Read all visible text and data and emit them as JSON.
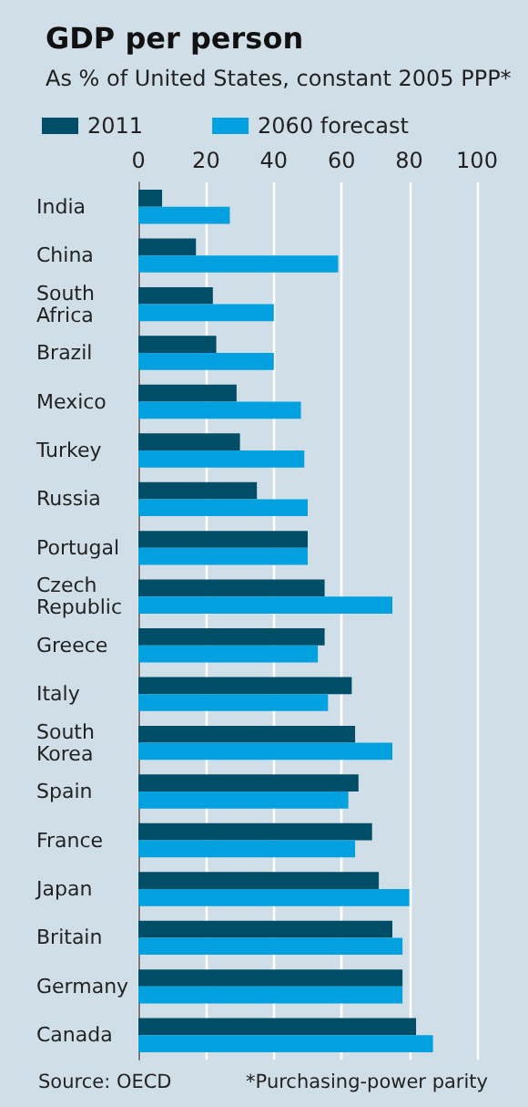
{
  "chart_data": {
    "type": "bar",
    "orientation": "horizontal",
    "title": "GDP per person",
    "subtitle": "As % of United States, constant 2005 PPP*",
    "categories": [
      "India",
      "China",
      "South Africa",
      "Brazil",
      "Mexico",
      "Turkey",
      "Russia",
      "Portugal",
      "Czech Republic",
      "Greece",
      "Italy",
      "South Korea",
      "Spain",
      "France",
      "Japan",
      "Britain",
      "Germany",
      "Canada"
    ],
    "series": [
      {
        "name": "2011",
        "color": "#004d67",
        "values": [
          7,
          17,
          22,
          23,
          29,
          30,
          35,
          50,
          55,
          55,
          63,
          64,
          65,
          69,
          71,
          75,
          78,
          82
        ]
      },
      {
        "name": "2060 forecast",
        "color": "#00a1de",
        "values": [
          27,
          59,
          40,
          40,
          48,
          49,
          50,
          50,
          75,
          53,
          56,
          75,
          62,
          64,
          80,
          78,
          78,
          87
        ]
      }
    ],
    "xlim": [
      0,
      100
    ],
    "xticks": [
      0,
      20,
      40,
      60,
      80,
      100
    ],
    "grid": "x",
    "legend": "top left",
    "annotations": [
      "Source: OECD",
      "*Purchasing-power parity"
    ]
  }
}
